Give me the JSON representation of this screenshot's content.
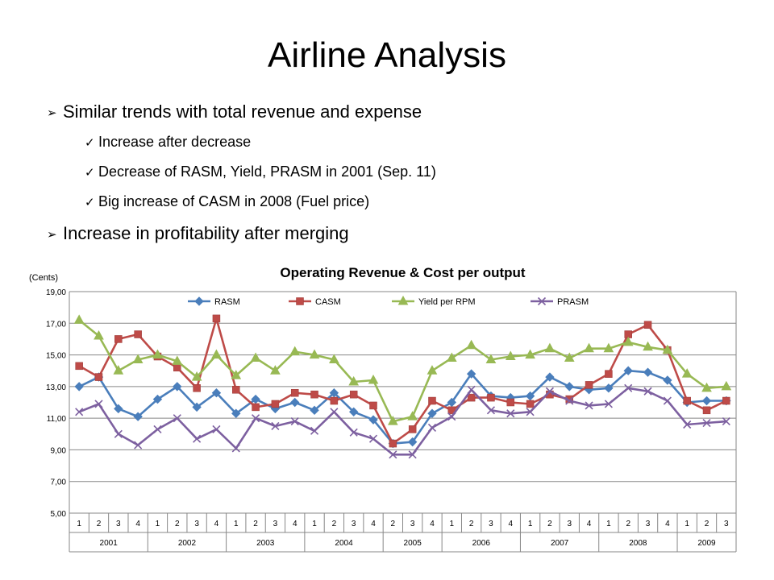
{
  "slide": {
    "title": "Airline Analysis",
    "bullets": [
      {
        "level": 1,
        "marker": "➢",
        "text": "Similar trends with total revenue and expense"
      },
      {
        "level": 2,
        "marker": "✓",
        "text": "Increase after decrease"
      },
      {
        "level": 2,
        "marker": "✓",
        "text": "Decrease of RASM, Yield, PRASM in 2001 (Sep. 11)"
      },
      {
        "level": 2,
        "marker": "✓",
        "text": "Big increase of CASM in 2008 (Fuel price)"
      },
      {
        "level": 1,
        "marker": "➢",
        "text": "Increase in profitability after merging"
      }
    ]
  },
  "chart_data": {
    "type": "line",
    "title": "Operating Revenue & Cost per output",
    "ylabel": "(Cents)",
    "xlabel": "",
    "ylim": [
      5,
      19
    ],
    "yticks": [
      "5,00",
      "7,00",
      "9,00",
      "11,00",
      "13,00",
      "15,00",
      "17,00",
      "19,00"
    ],
    "grid": true,
    "legend_position": "top",
    "categories": [
      "1",
      "2",
      "3",
      "4",
      "1",
      "2",
      "3",
      "4",
      "1",
      "2",
      "3",
      "4",
      "1",
      "2",
      "3",
      "4",
      "2",
      "3",
      "4",
      "1",
      "2",
      "3",
      "4",
      "1",
      "2",
      "3",
      "4",
      "1",
      "2",
      "3",
      "4",
      "1",
      "2",
      "3"
    ],
    "groups": [
      {
        "label": "2001",
        "count": 4
      },
      {
        "label": "2002",
        "count": 4
      },
      {
        "label": "2003",
        "count": 4
      },
      {
        "label": "2004",
        "count": 4
      },
      {
        "label": "2005",
        "count": 3
      },
      {
        "label": "2006",
        "count": 4
      },
      {
        "label": "2007",
        "count": 4
      },
      {
        "label": "2008",
        "count": 4
      },
      {
        "label": "2009",
        "count": 3
      }
    ],
    "series": [
      {
        "name": "RASM",
        "color": "#4a7ebb",
        "marker": "diamond",
        "values": [
          13.0,
          13.6,
          11.6,
          11.1,
          12.2,
          13.0,
          11.7,
          12.6,
          11.3,
          12.2,
          11.6,
          12.0,
          11.5,
          12.6,
          11.4,
          10.9,
          9.4,
          9.5,
          11.3,
          12.0,
          13.8,
          12.4,
          12.3,
          12.4,
          13.6,
          13.0,
          12.8,
          12.9,
          14.0,
          13.9,
          13.4,
          12.0,
          12.1,
          12.1
        ]
      },
      {
        "name": "CASM",
        "color": "#be4b48",
        "marker": "square",
        "values": [
          14.3,
          13.6,
          16.0,
          16.3,
          14.9,
          14.2,
          12.9,
          17.3,
          12.8,
          11.7,
          11.9,
          12.6,
          12.5,
          12.1,
          12.5,
          11.8,
          9.4,
          10.3,
          12.1,
          11.5,
          12.3,
          12.3,
          12.0,
          11.9,
          12.5,
          12.2,
          13.1,
          13.8,
          16.3,
          16.9,
          15.3,
          12.1,
          11.5,
          12.1
        ]
      },
      {
        "name": "Yield per RPM",
        "color": "#98b954",
        "marker": "triangle",
        "values": [
          17.2,
          16.2,
          14.0,
          14.7,
          15.0,
          14.6,
          13.6,
          15.0,
          13.7,
          14.8,
          14.0,
          15.2,
          15.0,
          14.7,
          13.3,
          13.4,
          10.8,
          11.1,
          14.0,
          14.8,
          15.6,
          14.7,
          14.9,
          15.0,
          15.4,
          14.8,
          15.4,
          15.4,
          15.8,
          15.5,
          15.3,
          13.8,
          12.9,
          13.0
        ]
      },
      {
        "name": "PRASM",
        "color": "#7d60a0",
        "marker": "x",
        "values": [
          11.4,
          11.9,
          10.0,
          9.3,
          10.3,
          11.0,
          9.7,
          10.3,
          9.1,
          11.0,
          10.5,
          10.8,
          10.2,
          11.4,
          10.1,
          9.7,
          8.7,
          8.7,
          10.4,
          11.1,
          12.8,
          11.5,
          11.3,
          11.4,
          12.7,
          12.1,
          11.8,
          11.9,
          12.9,
          12.7,
          12.1,
          10.6,
          10.7,
          10.8
        ]
      }
    ]
  }
}
